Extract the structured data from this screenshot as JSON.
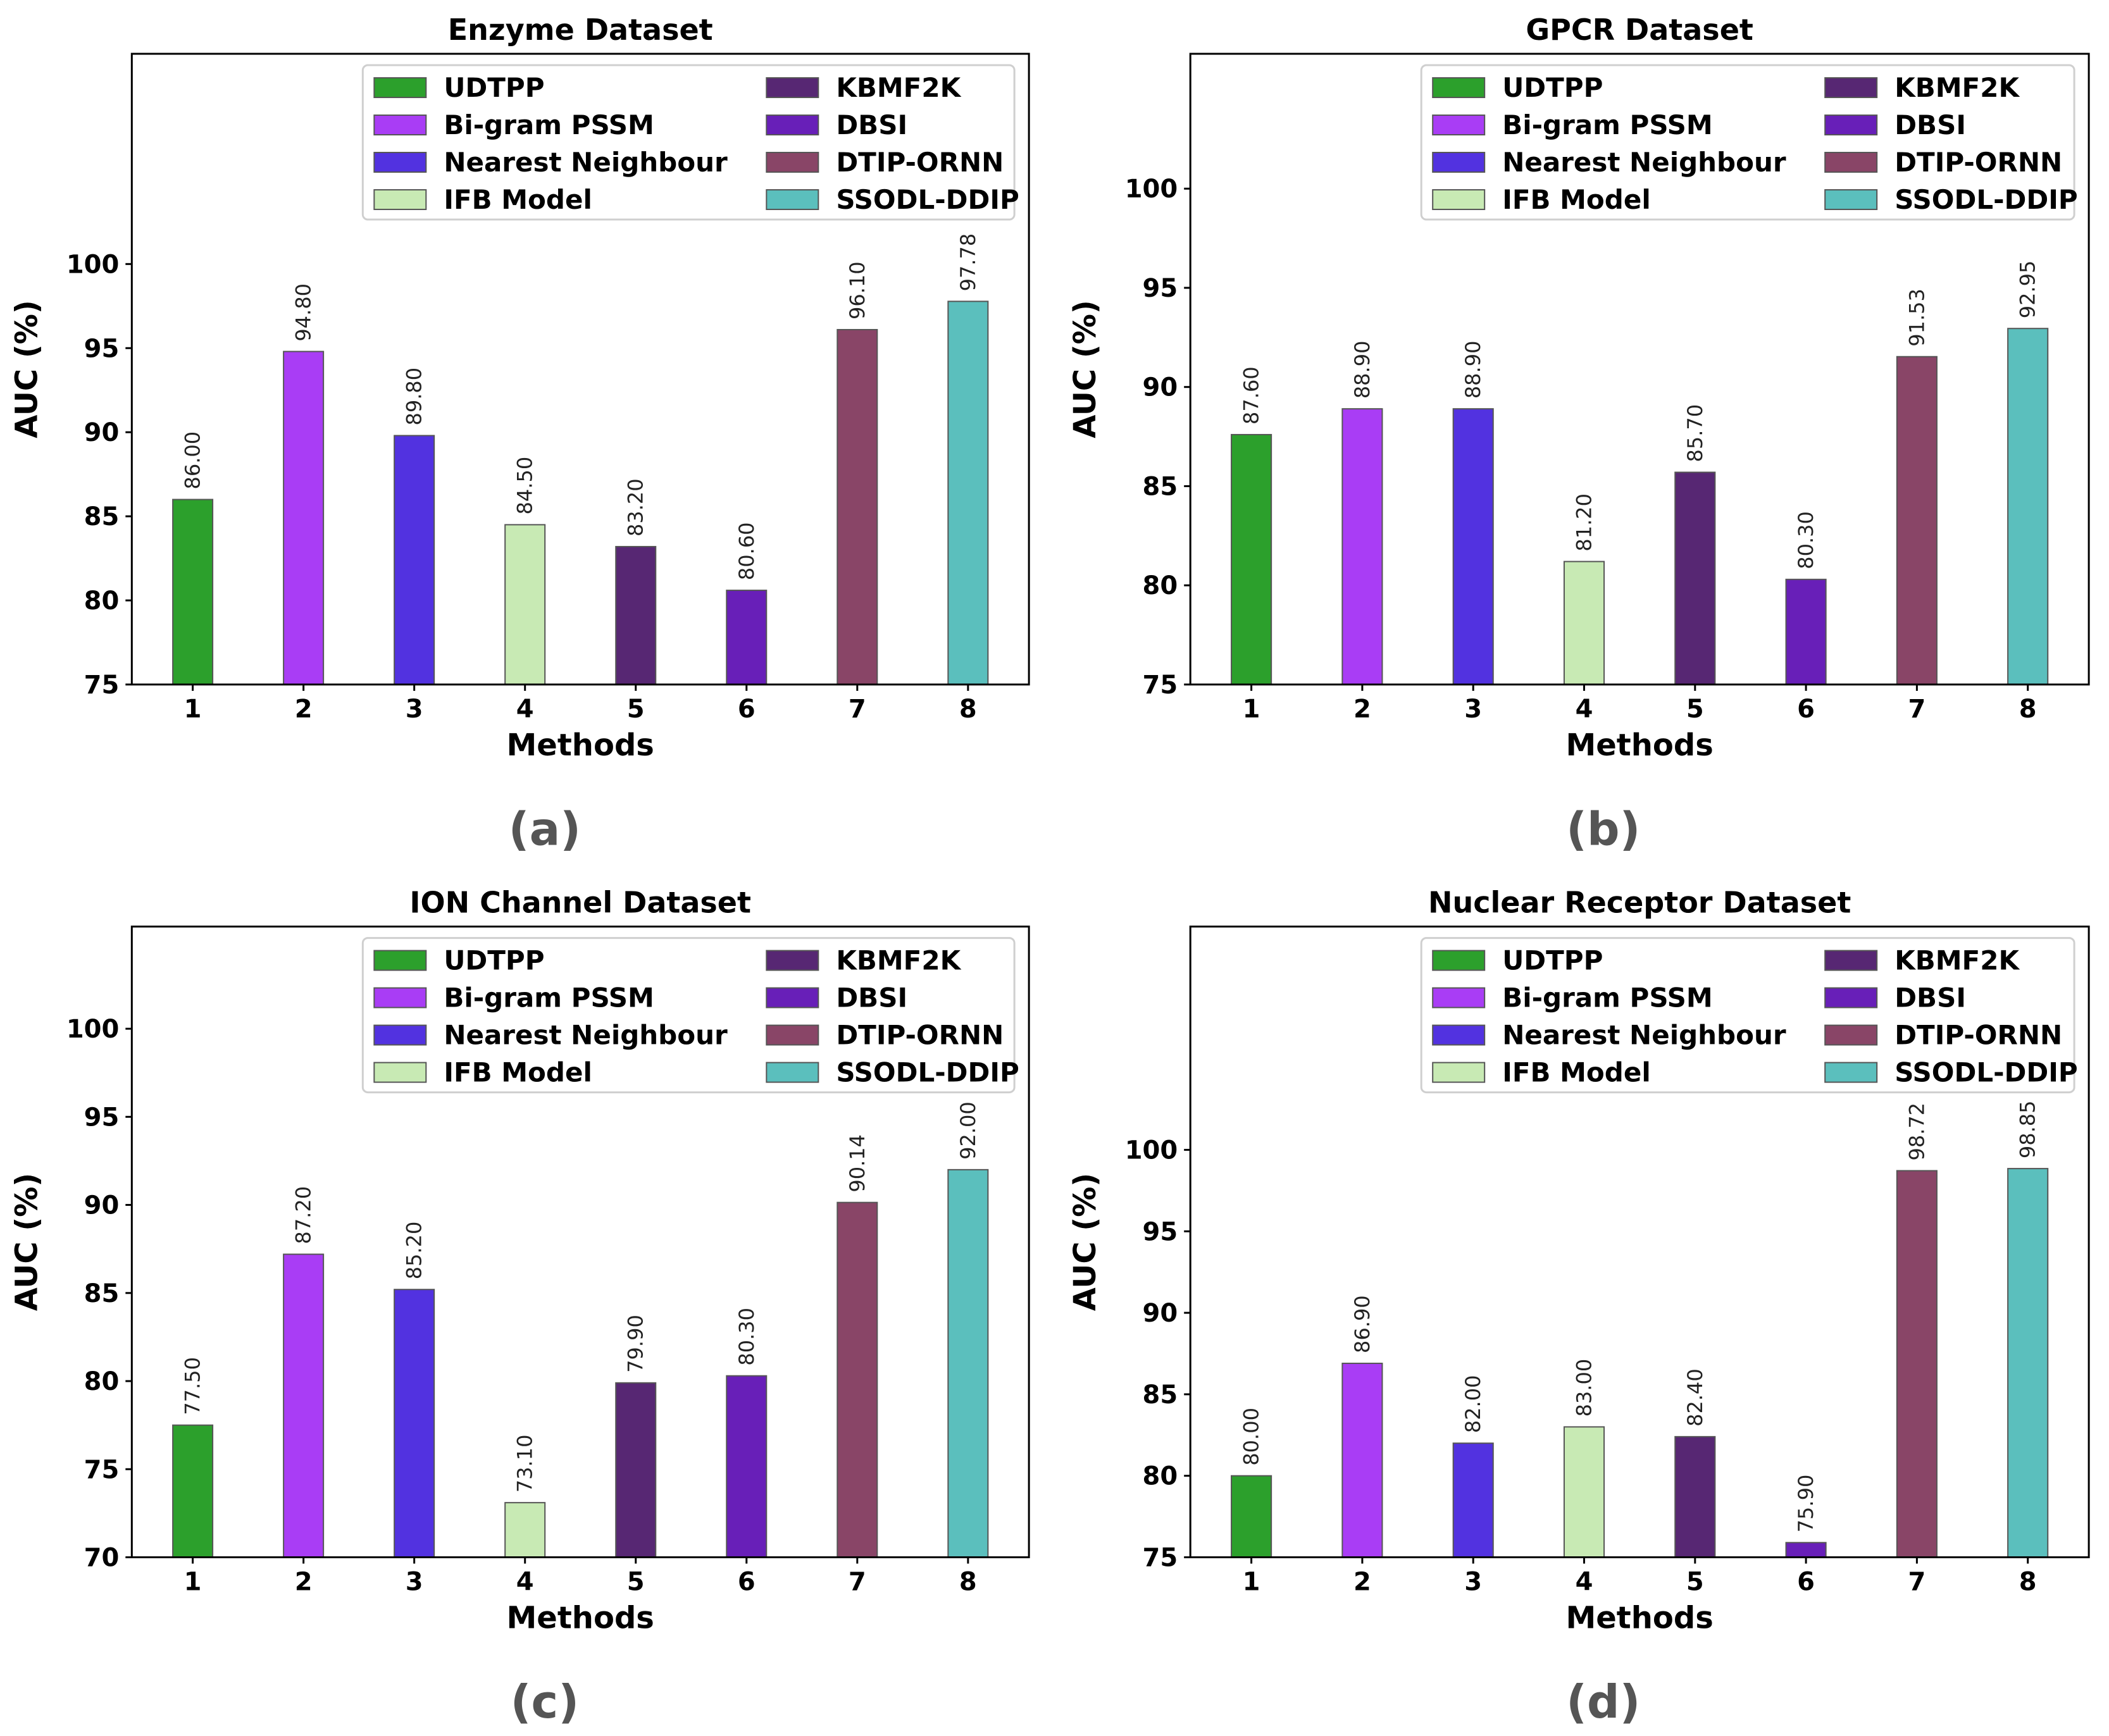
{
  "chart_data": [
    {
      "type": "bar",
      "panel": "(a)",
      "title": "Enzyme Dataset",
      "xlabel": "Methods",
      "ylabel": "AUC (%)",
      "categories": [
        "1",
        "2",
        "3",
        "4",
        "5",
        "6",
        "7",
        "8"
      ],
      "values": [
        86.0,
        94.8,
        89.8,
        84.5,
        83.2,
        80.6,
        96.1,
        97.78
      ],
      "value_labels": [
        "86.00",
        "94.80",
        "89.80",
        "84.50",
        "83.20",
        "80.60",
        "96.10",
        "97.78"
      ],
      "ylim": [
        75,
        112.5
      ],
      "yticks": [
        75,
        80,
        85,
        90,
        95,
        100
      ],
      "legend": [
        "UDTPP",
        "Bi-gram PSSM",
        "Nearest Neighbour",
        "IFB Model",
        "KBMF2K",
        "DBSI",
        "DTIP-ORNN",
        "SSODL-DDIP"
      ],
      "legend_position": "top-right"
    },
    {
      "type": "bar",
      "panel": "(b)",
      "title": "GPCR Dataset",
      "xlabel": "Methods",
      "ylabel": "AUC (%)",
      "categories": [
        "1",
        "2",
        "3",
        "4",
        "5",
        "6",
        "7",
        "8"
      ],
      "values": [
        87.6,
        88.9,
        88.9,
        81.2,
        85.7,
        80.3,
        91.53,
        92.95
      ],
      "value_labels": [
        "87.60",
        "88.90",
        "88.90",
        "81.20",
        "85.70",
        "80.30",
        "91.53",
        "92.95"
      ],
      "ylim": [
        75,
        106.8
      ],
      "yticks": [
        75,
        80,
        85,
        90,
        95,
        100
      ],
      "legend": [
        "UDTPP",
        "Bi-gram PSSM",
        "Nearest Neighbour",
        "IFB Model",
        "KBMF2K",
        "DBSI",
        "DTIP-ORNN",
        "SSODL-DDIP"
      ],
      "legend_position": "top-right"
    },
    {
      "type": "bar",
      "panel": "(c)",
      "title": "ION Channel Dataset",
      "xlabel": "Methods",
      "ylabel": "AUC (%)",
      "categories": [
        "1",
        "2",
        "3",
        "4",
        "5",
        "6",
        "7",
        "8"
      ],
      "values": [
        77.5,
        87.2,
        85.2,
        73.1,
        79.9,
        80.3,
        90.14,
        92.0
      ],
      "value_labels": [
        "77.50",
        "87.20",
        "85.20",
        "73.10",
        "79.90",
        "80.30",
        "90.14",
        "92.00"
      ],
      "ylim": [
        70,
        105.8
      ],
      "yticks": [
        70,
        75,
        80,
        85,
        90,
        95,
        100
      ],
      "legend": [
        "UDTPP",
        "Bi-gram PSSM",
        "Nearest Neighbour",
        "IFB Model",
        "KBMF2K",
        "DBSI",
        "DTIP-ORNN",
        "SSODL-DDIP"
      ],
      "legend_position": "top-right"
    },
    {
      "type": "bar",
      "panel": "(d)",
      "title": "Nuclear Receptor Dataset",
      "xlabel": "Methods",
      "ylabel": "AUC (%)",
      "categories": [
        "1",
        "2",
        "3",
        "4",
        "5",
        "6",
        "7",
        "8"
      ],
      "values": [
        80.0,
        86.9,
        82.0,
        83.0,
        82.4,
        75.9,
        98.72,
        98.85
      ],
      "value_labels": [
        "80.00",
        "86.90",
        "82.00",
        "83.00",
        "82.40",
        "75.90",
        "98.72",
        "98.85"
      ],
      "ylim": [
        75,
        113.7
      ],
      "yticks": [
        75,
        80,
        85,
        90,
        95,
        100
      ],
      "legend": [
        "UDTPP",
        "Bi-gram PSSM",
        "Nearest Neighbour",
        "IFB Model",
        "KBMF2K",
        "DBSI",
        "DTIP-ORNN",
        "SSODL-DDIP"
      ],
      "legend_position": "top-right"
    }
  ],
  "colors": [
    "#2ca02c",
    "#a93df5",
    "#5232e0",
    "#c8eab4",
    "#572773",
    "#681fb8",
    "#894567",
    "#5bbfbd"
  ]
}
